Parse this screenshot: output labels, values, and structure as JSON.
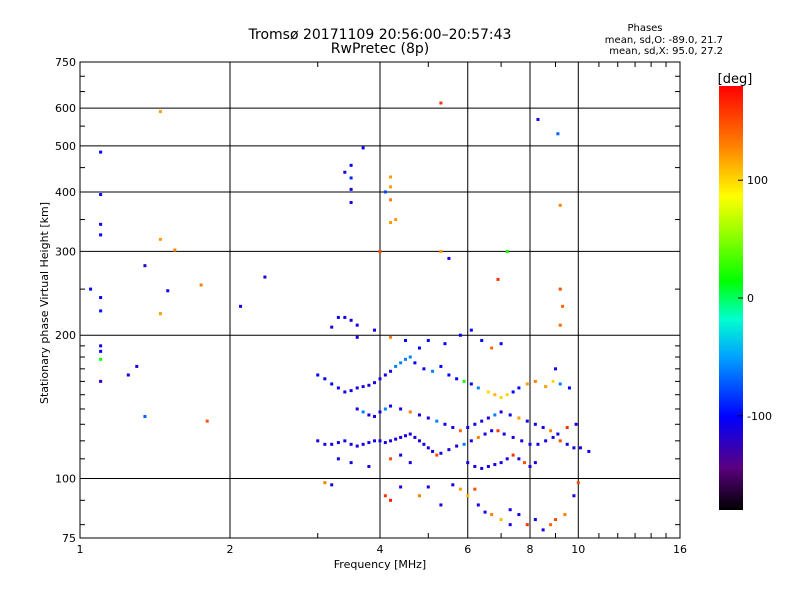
{
  "header": {
    "title_line1": "Tromsø 20171109 20:56:00–20:57:43",
    "title_line2": "RwPretec (8p)"
  },
  "stats": {
    "heading": "Phases",
    "line_o": "mean, sd,O:  -89.0, 21.7",
    "line_x": "mean, sd,X:  95.0, 27.2"
  },
  "colorbar": {
    "label": "[deg]",
    "ticks": [
      {
        "label": "100",
        "value": 100
      },
      {
        "label": "0",
        "value": 0
      },
      {
        "label": "-100",
        "value": -100
      }
    ],
    "range": [
      -180,
      180
    ]
  },
  "chart_data": {
    "type": "scatter",
    "title": "Tromsø 20171109 20:56:00–20:57:43",
    "subtitle": "RwPretec (8p)",
    "xlabel": "Frequency [MHz]",
    "ylabel": "Stationary phase Virtual Height [km]",
    "xscale": "log2",
    "yscale": "log",
    "xlim": [
      1,
      16
    ],
    "ylim": [
      75,
      750
    ],
    "xticks": [
      {
        "label": "1",
        "value": 1
      },
      {
        "label": "2",
        "value": 2
      },
      {
        "label": "4",
        "value": 4
      },
      {
        "label": "6",
        "value": 6
      },
      {
        "label": "8",
        "value": 8
      },
      {
        "label": "10",
        "value": 10
      },
      {
        "label": "16",
        "value": 16
      }
    ],
    "yticks": [
      {
        "label": "75",
        "value": 75
      },
      {
        "label": "100",
        "value": 100
      },
      {
        "label": "200",
        "value": 200
      },
      {
        "label": "300",
        "value": 300
      },
      {
        "label": "400",
        "value": 400
      },
      {
        "label": "500",
        "value": 500
      },
      {
        "label": "600",
        "value": 600
      },
      {
        "label": "750",
        "value": 750
      }
    ],
    "grid": true,
    "color_variable": "phase [deg]",
    "points": [
      [
        1.1,
        485,
        -100
      ],
      [
        1.1,
        395,
        -100
      ],
      [
        1.1,
        342,
        -110
      ],
      [
        1.1,
        325,
        -100
      ],
      [
        1.1,
        240,
        -100
      ],
      [
        1.1,
        225,
        -95
      ],
      [
        1.05,
        250,
        -100
      ],
      [
        1.1,
        190,
        -110
      ],
      [
        1.1,
        185,
        -100
      ],
      [
        1.1,
        178,
        20
      ],
      [
        1.1,
        160,
        -120
      ],
      [
        1.25,
        165,
        -110
      ],
      [
        1.3,
        172,
        -110
      ],
      [
        1.35,
        280,
        -120
      ],
      [
        1.35,
        135,
        -70
      ],
      [
        1.45,
        590,
        120
      ],
      [
        1.45,
        318,
        120
      ],
      [
        1.45,
        222,
        120
      ],
      [
        1.5,
        248,
        -110
      ],
      [
        1.55,
        302,
        130
      ],
      [
        1.75,
        255,
        130
      ],
      [
        1.8,
        132,
        150
      ],
      [
        2.1,
        230,
        -110
      ],
      [
        2.35,
        265,
        -110
      ],
      [
        3.4,
        440,
        -110
      ],
      [
        3.5,
        455,
        -100
      ],
      [
        3.5,
        428,
        -90
      ],
      [
        3.5,
        405,
        -110
      ],
      [
        3.5,
        380,
        -110
      ],
      [
        3.7,
        495,
        -100
      ],
      [
        4.2,
        430,
        120
      ],
      [
        4.2,
        410,
        120
      ],
      [
        4.1,
        400,
        -80
      ],
      [
        4.2,
        385,
        130
      ],
      [
        4.3,
        350,
        120
      ],
      [
        4.2,
        345,
        120
      ],
      [
        4.0,
        300,
        150
      ],
      [
        5.3,
        615,
        160
      ],
      [
        5.3,
        300,
        120
      ],
      [
        5.5,
        290,
        -110
      ],
      [
        6.9,
        262,
        160
      ],
      [
        7.2,
        300,
        20
      ],
      [
        8.3,
        568,
        -110
      ],
      [
        9.1,
        530,
        -70
      ],
      [
        9.2,
        375,
        130
      ],
      [
        9.2,
        250,
        150
      ],
      [
        9.3,
        230,
        140
      ],
      [
        9.2,
        210,
        140
      ],
      [
        9.0,
        170,
        -110
      ],
      [
        3.3,
        218,
        -110
      ],
      [
        3.4,
        218,
        -110
      ],
      [
        3.5,
        215,
        -110
      ],
      [
        3.6,
        210,
        -110
      ],
      [
        3.6,
        198,
        -110
      ],
      [
        3.2,
        208,
        -110
      ],
      [
        3.9,
        205,
        -110
      ],
      [
        4.2,
        198,
        130
      ],
      [
        4.5,
        195,
        -100
      ],
      [
        4.8,
        188,
        -100
      ],
      [
        5.0,
        195,
        -100
      ],
      [
        5.4,
        192,
        -100
      ],
      [
        5.8,
        200,
        -100
      ],
      [
        6.1,
        205,
        -100
      ],
      [
        6.4,
        195,
        -100
      ],
      [
        6.7,
        188,
        140
      ],
      [
        7.0,
        192,
        -100
      ],
      [
        3.0,
        165,
        -100
      ],
      [
        3.1,
        162,
        -100
      ],
      [
        3.2,
        158,
        -100
      ],
      [
        3.3,
        155,
        -110
      ],
      [
        3.4,
        152,
        -110
      ],
      [
        3.5,
        153,
        -110
      ],
      [
        3.6,
        155,
        -110
      ],
      [
        3.7,
        156,
        -110
      ],
      [
        3.8,
        157,
        -110
      ],
      [
        3.9,
        159,
        -110
      ],
      [
        4.0,
        162,
        -110
      ],
      [
        4.1,
        165,
        -110
      ],
      [
        4.2,
        168,
        -110
      ],
      [
        4.3,
        172,
        -60
      ],
      [
        4.4,
        175,
        -60
      ],
      [
        4.5,
        178,
        -60
      ],
      [
        4.6,
        180,
        -60
      ],
      [
        4.7,
        175,
        -100
      ],
      [
        4.9,
        170,
        -100
      ],
      [
        5.1,
        168,
        -60
      ],
      [
        5.3,
        172,
        -100
      ],
      [
        5.5,
        165,
        -100
      ],
      [
        5.7,
        162,
        -100
      ],
      [
        5.9,
        160,
        20
      ],
      [
        6.1,
        158,
        -100
      ],
      [
        6.3,
        155,
        -60
      ],
      [
        6.6,
        152,
        100
      ],
      [
        6.8,
        150,
        110
      ],
      [
        7.0,
        148,
        100
      ],
      [
        7.2,
        150,
        100
      ],
      [
        7.4,
        152,
        -100
      ],
      [
        7.6,
        155,
        -100
      ],
      [
        7.9,
        158,
        120
      ],
      [
        8.2,
        160,
        130
      ],
      [
        8.6,
        156,
        120
      ],
      [
        8.9,
        160,
        100
      ],
      [
        9.2,
        158,
        -60
      ],
      [
        9.6,
        155,
        -100
      ],
      [
        3.0,
        120,
        -110
      ],
      [
        3.1,
        118,
        -110
      ],
      [
        3.2,
        118,
        -110
      ],
      [
        3.3,
        119,
        -110
      ],
      [
        3.4,
        120,
        -110
      ],
      [
        3.5,
        118,
        -110
      ],
      [
        3.6,
        117,
        -110
      ],
      [
        3.7,
        118,
        -110
      ],
      [
        3.8,
        119,
        -110
      ],
      [
        3.9,
        120,
        -110
      ],
      [
        4.0,
        120,
        -110
      ],
      [
        4.1,
        119,
        -110
      ],
      [
        4.2,
        120,
        -110
      ],
      [
        4.3,
        121,
        -110
      ],
      [
        4.4,
        122,
        -110
      ],
      [
        4.5,
        123,
        -110
      ],
      [
        4.6,
        124,
        -110
      ],
      [
        4.7,
        122,
        -110
      ],
      [
        4.8,
        120,
        -110
      ],
      [
        4.9,
        118,
        -110
      ],
      [
        5.0,
        116,
        -110
      ],
      [
        5.1,
        114,
        -110
      ],
      [
        5.2,
        112,
        150
      ],
      [
        5.3,
        113,
        -110
      ],
      [
        5.5,
        115,
        -110
      ],
      [
        5.7,
        117,
        -110
      ],
      [
        5.9,
        118,
        -60
      ],
      [
        6.1,
        120,
        -110
      ],
      [
        6.3,
        122,
        130
      ],
      [
        6.5,
        124,
        -110
      ],
      [
        6.7,
        126,
        -110
      ],
      [
        6.9,
        126,
        160
      ],
      [
        7.1,
        124,
        -110
      ],
      [
        7.4,
        122,
        -110
      ],
      [
        7.7,
        120,
        -110
      ],
      [
        8.0,
        118,
        -110
      ],
      [
        8.3,
        118,
        -110
      ],
      [
        8.6,
        120,
        -110
      ],
      [
        8.9,
        122,
        -110
      ],
      [
        9.2,
        120,
        150
      ],
      [
        9.5,
        118,
        -110
      ],
      [
        9.8,
        116,
        -110
      ],
      [
        10.1,
        116,
        -110
      ],
      [
        10.5,
        114,
        -110
      ],
      [
        3.6,
        140,
        -110
      ],
      [
        3.7,
        138,
        -60
      ],
      [
        3.8,
        136,
        -110
      ],
      [
        3.9,
        135,
        -110
      ],
      [
        4.0,
        138,
        -110
      ],
      [
        4.1,
        140,
        -60
      ],
      [
        4.2,
        142,
        -110
      ],
      [
        4.4,
        140,
        -110
      ],
      [
        4.6,
        138,
        130
      ],
      [
        4.8,
        136,
        -110
      ],
      [
        5.0,
        134,
        -110
      ],
      [
        5.2,
        132,
        -60
      ],
      [
        5.4,
        130,
        -110
      ],
      [
        5.6,
        128,
        -110
      ],
      [
        5.8,
        126,
        140
      ],
      [
        6.0,
        128,
        -110
      ],
      [
        6.2,
        130,
        -110
      ],
      [
        6.4,
        132,
        -110
      ],
      [
        6.6,
        134,
        -110
      ],
      [
        6.8,
        136,
        -60
      ],
      [
        7.0,
        138,
        -110
      ],
      [
        7.3,
        136,
        -110
      ],
      [
        7.6,
        134,
        120
      ],
      [
        7.9,
        132,
        -110
      ],
      [
        8.2,
        130,
        -110
      ],
      [
        8.5,
        128,
        -110
      ],
      [
        8.8,
        126,
        130
      ],
      [
        9.1,
        124,
        -110
      ],
      [
        9.5,
        128,
        160
      ],
      [
        9.9,
        130,
        -110
      ],
      [
        6.0,
        108,
        -110
      ],
      [
        6.2,
        106,
        -110
      ],
      [
        6.4,
        105,
        -110
      ],
      [
        6.6,
        106,
        -110
      ],
      [
        6.8,
        107,
        -110
      ],
      [
        7.0,
        108,
        -110
      ],
      [
        7.2,
        110,
        -110
      ],
      [
        7.4,
        112,
        160
      ],
      [
        7.6,
        110,
        -110
      ],
      [
        7.8,
        108,
        150
      ],
      [
        8.0,
        106,
        -110
      ],
      [
        8.2,
        108,
        -110
      ],
      [
        3.3,
        110,
        -110
      ],
      [
        3.5,
        108,
        -110
      ],
      [
        3.8,
        106,
        -110
      ],
      [
        4.2,
        110,
        150
      ],
      [
        4.4,
        112,
        -110
      ],
      [
        4.6,
        108,
        -110
      ],
      [
        3.1,
        98,
        130
      ],
      [
        3.2,
        97,
        -110
      ],
      [
        4.1,
        92,
        160
      ],
      [
        4.2,
        90,
        170
      ],
      [
        4.4,
        96,
        -110
      ],
      [
        4.8,
        92,
        130
      ],
      [
        5.0,
        96,
        -110
      ],
      [
        5.3,
        88,
        -110
      ],
      [
        5.8,
        95,
        120
      ],
      [
        6.0,
        92,
        110
      ],
      [
        6.3,
        88,
        -110
      ],
      [
        6.5,
        85,
        -110
      ],
      [
        6.7,
        84,
        130
      ],
      [
        7.0,
        82,
        110
      ],
      [
        7.3,
        86,
        -110
      ],
      [
        7.6,
        84,
        -110
      ],
      [
        7.9,
        80,
        160
      ],
      [
        8.2,
        82,
        -110
      ],
      [
        8.5,
        78,
        -110
      ],
      [
        8.8,
        80,
        140
      ],
      [
        9.0,
        82,
        150
      ],
      [
        9.4,
        84,
        130
      ],
      [
        9.8,
        92,
        -110
      ],
      [
        10.0,
        98,
        150
      ],
      [
        7.3,
        80,
        -110
      ],
      [
        6.2,
        95,
        150
      ],
      [
        5.6,
        97,
        -110
      ]
    ]
  }
}
